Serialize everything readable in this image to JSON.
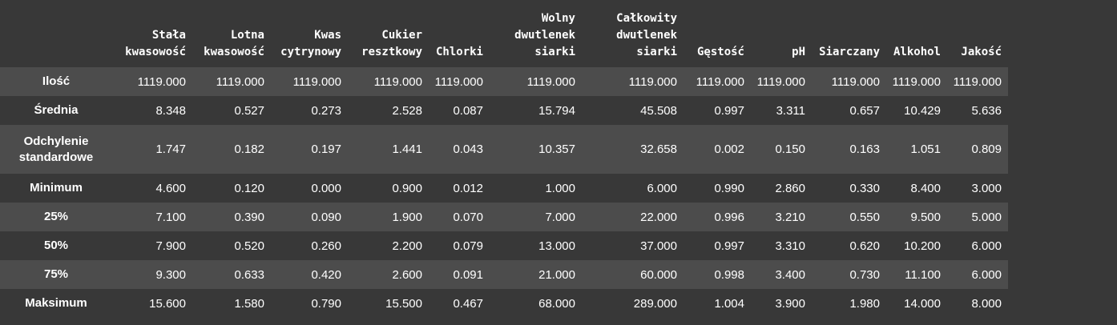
{
  "columns": [
    "Stała\nkwasowość",
    "Lotna\nkwasowość",
    "Kwas\ncytrynowy",
    "Cukier\nresztkowy",
    "Chlorki",
    "Wolny\ndwutlenek\nsiarki",
    "Całkowity\ndwutlenek\nsiarki",
    "Gęstość",
    "pH",
    "Siarczany",
    "Alkohol",
    "Jakość"
  ],
  "rows": [
    {
      "label": "Ilość",
      "values": [
        "1119.000",
        "1119.000",
        "1119.000",
        "1119.000",
        "1119.000",
        "1119.000",
        "1119.000",
        "1119.000",
        "1119.000",
        "1119.000",
        "1119.000",
        "1119.000"
      ]
    },
    {
      "label": "Średnia",
      "values": [
        "8.348",
        "0.527",
        "0.273",
        "2.528",
        "0.087",
        "15.794",
        "45.508",
        "0.997",
        "3.311",
        "0.657",
        "10.429",
        "5.636"
      ]
    },
    {
      "label": "Odchylenie standardowe",
      "values": [
        "1.747",
        "0.182",
        "0.197",
        "1.441",
        "0.043",
        "10.357",
        "32.658",
        "0.002",
        "0.150",
        "0.163",
        "1.051",
        "0.809"
      ]
    },
    {
      "label": "Minimum",
      "values": [
        "4.600",
        "0.120",
        "0.000",
        "0.900",
        "0.012",
        "1.000",
        "6.000",
        "0.990",
        "2.860",
        "0.330",
        "8.400",
        "3.000"
      ]
    },
    {
      "label": "25%",
      "values": [
        "7.100",
        "0.390",
        "0.090",
        "1.900",
        "0.070",
        "7.000",
        "22.000",
        "0.996",
        "3.210",
        "0.550",
        "9.500",
        "5.000"
      ]
    },
    {
      "label": "50%",
      "values": [
        "7.900",
        "0.520",
        "0.260",
        "2.200",
        "0.079",
        "13.000",
        "37.000",
        "0.997",
        "3.310",
        "0.620",
        "10.200",
        "6.000"
      ]
    },
    {
      "label": "75%",
      "values": [
        "9.300",
        "0.633",
        "0.420",
        "2.600",
        "0.091",
        "21.000",
        "60.000",
        "0.998",
        "3.400",
        "0.730",
        "11.100",
        "6.000"
      ]
    },
    {
      "label": "Maksimum",
      "values": [
        "15.600",
        "1.580",
        "0.790",
        "15.500",
        "0.467",
        "68.000",
        "289.000",
        "1.004",
        "3.900",
        "1.980",
        "14.000",
        "8.000"
      ]
    }
  ],
  "colors": {
    "background": "#383838",
    "row_stripe": "#4c4c4c",
    "text": "#ffffff"
  }
}
